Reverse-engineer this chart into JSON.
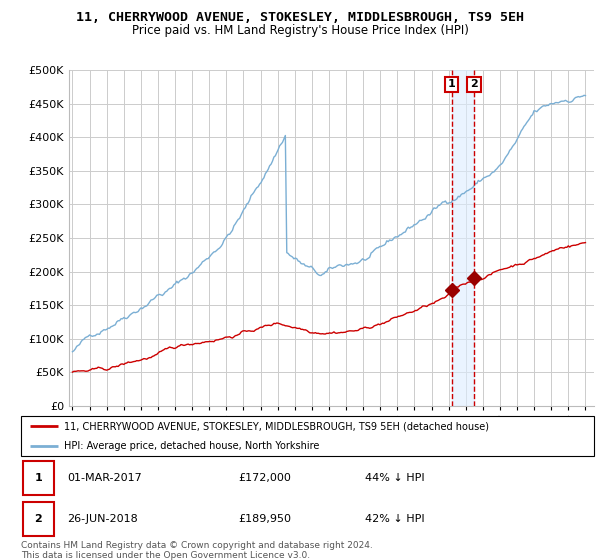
{
  "title": "11, CHERRYWOOD AVENUE, STOKESLEY, MIDDLESBROUGH, TS9 5EH",
  "subtitle": "Price paid vs. HM Land Registry's House Price Index (HPI)",
  "legend_line1": "11, CHERRYWOOD AVENUE, STOKESLEY, MIDDLESBROUGH, TS9 5EH (detached house)",
  "legend_line2": "HPI: Average price, detached house, North Yorkshire",
  "transaction1_label": "01-MAR-2017",
  "transaction1_price": "£172,000",
  "transaction1_hpi": "44% ↓ HPI",
  "transaction1_year": 2017.17,
  "transaction1_value": 172000,
  "transaction2_label": "26-JUN-2018",
  "transaction2_price": "£189,950",
  "transaction2_hpi": "42% ↓ HPI",
  "transaction2_year": 2018.49,
  "transaction2_value": 189950,
  "footnote": "Contains HM Land Registry data © Crown copyright and database right 2024.\nThis data is licensed under the Open Government Licence v3.0.",
  "ylim": [
    0,
    500000
  ],
  "xlim_start": 1994.8,
  "xlim_end": 2025.5,
  "hpi_color": "#7bafd4",
  "property_color": "#cc0000",
  "point_color": "#990000",
  "dashed_color": "#cc0000",
  "shade_color": "#ddeeff",
  "background_color": "#ffffff",
  "grid_color": "#cccccc",
  "title_fontsize": 9.5,
  "subtitle_fontsize": 8.5
}
